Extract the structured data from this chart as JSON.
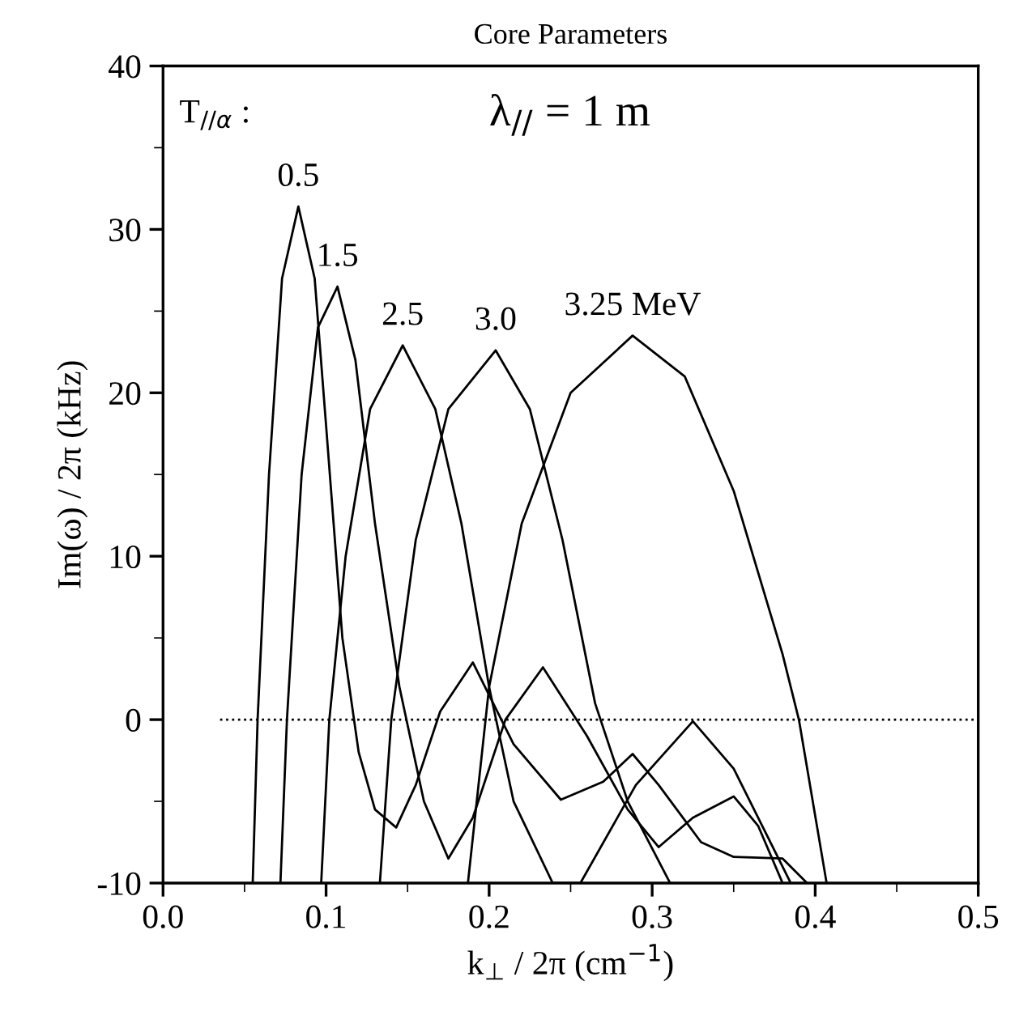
{
  "chart_data": {
    "type": "line",
    "title": "Core Parameters",
    "xlabel": "k$_{⊥}$ / 2π (cm$^{−1}$)",
    "ylabel": "Im(ω) / 2π (kHz)",
    "xlim": [
      0.0,
      0.5
    ],
    "ylim": [
      -10,
      40
    ],
    "xticks": [
      {
        "value": 0.0,
        "label": "0.0"
      },
      0.1,
      0.2,
      0.3,
      0.4,
      0.5
    ],
    "yticks": [
      -10,
      0,
      10,
      20,
      30,
      40
    ],
    "grid": false,
    "legend": false,
    "marker": "none",
    "line_style": "solid",
    "ref_lines": [
      {
        "axis": "y",
        "value": 0,
        "line_style": "dotted",
        "color": "#000000"
      }
    ],
    "annotations": [
      "T$_{//α}$ :",
      "λ$_{//}$ = 1 m",
      {
        "text": "0.5",
        "x": 0.083,
        "y": 31.4
      },
      {
        "text": "1.5",
        "x": 0.107,
        "y": 26.5
      },
      {
        "text": "2.5",
        "x": 0.147,
        "y": 22.9
      },
      {
        "text": "3.0",
        "x": 0.204,
        "y": 22.6
      },
      {
        "text": "3.25 MeV",
        "x": 0.288,
        "y": 23.5
      }
    ],
    "series": [
      {
        "color": "#000000",
        "x": [
          0.055,
          0.058,
          0.065,
          0.073,
          0.083,
          0.093,
          0.1,
          0.11,
          0.12,
          0.13,
          0.143,
          0.155,
          0.17,
          0.19,
          0.215,
          0.244,
          0.27,
          0.288,
          0.304,
          0.33,
          0.35,
          0.38,
          0.395
        ],
        "values": [
          -10,
          0,
          15,
          27,
          31.4,
          27,
          18,
          5,
          -2,
          -5.5,
          -6.6,
          -4,
          0.5,
          3.5,
          -1.5,
          -4.9,
          -3.8,
          -2.1,
          -4,
          -7.5,
          -8.4,
          -8.5,
          -10
        ]
      },
      {
        "color": "#000000",
        "x": [
          0.072,
          0.076,
          0.085,
          0.095,
          0.107,
          0.118,
          0.13,
          0.145,
          0.16,
          0.175,
          0.19,
          0.21,
          0.233,
          0.26,
          0.285,
          0.304,
          0.325,
          0.35,
          0.365,
          0.38
        ],
        "values": [
          -10,
          0,
          15,
          24,
          26.5,
          22,
          12,
          2,
          -5,
          -8.5,
          -6,
          0,
          3.2,
          -1,
          -5.5,
          -7.8,
          -6,
          -4.7,
          -6.5,
          -10
        ]
      },
      {
        "color": "#000000",
        "x": [
          0.097,
          0.102,
          0.112,
          0.127,
          0.147,
          0.167,
          0.183,
          0.2,
          0.215,
          0.239,
          0.256,
          0.29,
          0.325,
          0.35,
          0.37,
          0.385
        ],
        "values": [
          -10,
          0,
          10,
          19,
          22.9,
          19,
          12,
          2,
          -5,
          -10,
          -10,
          -4,
          -0.1,
          -3,
          -7,
          -10
        ]
      },
      {
        "color": "#000000",
        "x": [
          0.133,
          0.14,
          0.155,
          0.175,
          0.204,
          0.225,
          0.245,
          0.265,
          0.285,
          0.311
        ],
        "values": [
          -10,
          0,
          11,
          19,
          22.6,
          19,
          11,
          1,
          -5,
          -10
        ]
      },
      {
        "color": "#000000",
        "x": [
          0.187,
          0.2,
          0.22,
          0.25,
          0.288,
          0.32,
          0.35,
          0.38,
          0.39,
          0.407
        ],
        "values": [
          -10,
          2,
          12,
          20,
          23.5,
          21,
          14,
          4,
          0,
          -10
        ]
      }
    ]
  }
}
